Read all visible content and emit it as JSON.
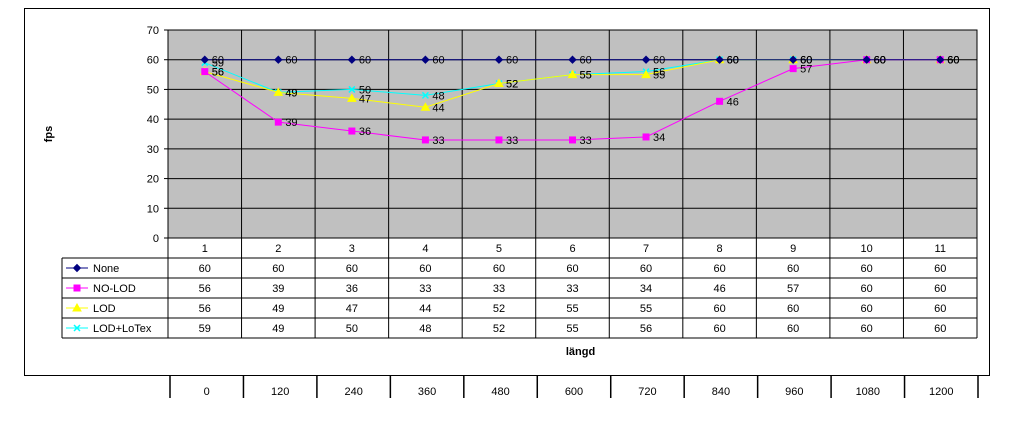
{
  "chart_data": {
    "type": "line",
    "title": "",
    "xlabel": "längd",
    "ylabel": "fps",
    "ylim": [
      0,
      70
    ],
    "yticks": [
      "0",
      "10",
      "20",
      "30",
      "40",
      "50",
      "60",
      "70"
    ],
    "categories": [
      "1",
      "2",
      "3",
      "4",
      "5",
      "6",
      "7",
      "8",
      "9",
      "10",
      "11"
    ],
    "grid": true,
    "legend": "data-table-left",
    "series": [
      {
        "name": "None",
        "values": [
          60,
          60,
          60,
          60,
          60,
          60,
          60,
          60,
          60,
          60,
          60
        ],
        "color": "#000080",
        "marker": "diamond"
      },
      {
        "name": "NO-LOD",
        "values": [
          56,
          39,
          36,
          33,
          33,
          33,
          34,
          46,
          57,
          60,
          60
        ],
        "color": "#ff00ff",
        "marker": "square"
      },
      {
        "name": "LOD",
        "values": [
          56,
          49,
          47,
          44,
          52,
          55,
          55,
          60,
          60,
          60,
          60
        ],
        "color": "#ffff00",
        "marker": "triangle"
      },
      {
        "name": "LOD+LoTex",
        "values": [
          59,
          49,
          50,
          48,
          52,
          55,
          56,
          60,
          60,
          60,
          60
        ],
        "color": "#00ffff",
        "marker": "x"
      }
    ],
    "secondary_axis_labels": [
      "0",
      "120",
      "240",
      "360",
      "480",
      "600",
      "720",
      "840",
      "960",
      "1080",
      "1200"
    ],
    "plot_bg": "#c0c0c0"
  }
}
